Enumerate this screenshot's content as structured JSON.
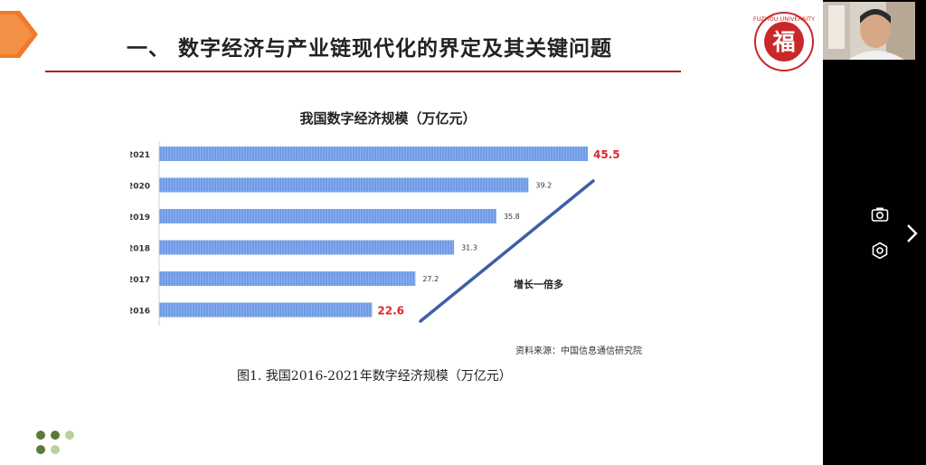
{
  "slide": {
    "title": "一、 数字经济与产业链现代化的界定及其关键问题",
    "logo": {
      "text": "福",
      "ring_text": "FUZHOU UNIVERSITY",
      "brand_color": "#c8282a"
    },
    "caption": "图1.  我国2016-2021年数字经济规模（万亿元）"
  },
  "chart_data": {
    "type": "bar",
    "orientation": "horizontal",
    "title": "我国数字经济规模（万亿元）",
    "categories": [
      "2021",
      "2020",
      "2019",
      "2018",
      "2017",
      "2016"
    ],
    "values": [
      45.5,
      39.2,
      35.8,
      31.3,
      27.2,
      22.6
    ],
    "value_labels": [
      "45.5",
      "39.2",
      "35.8",
      "31.3",
      "27.2",
      "22.6"
    ],
    "highlighted": [
      "2021",
      "2016"
    ],
    "annotation": "增长一倍多",
    "source": "资料来源：中国信息通信研究院",
    "xlim": [
      0,
      45.5
    ],
    "grid": false,
    "colors": {
      "bar": "#6f9ae6",
      "highlight_label": "#e0262a",
      "arrow": "#3d5fa6"
    }
  },
  "controls": {
    "camera_icon": "camera-icon",
    "focus_icon": "focus-icon",
    "next_icon": "chevron-right-icon"
  }
}
